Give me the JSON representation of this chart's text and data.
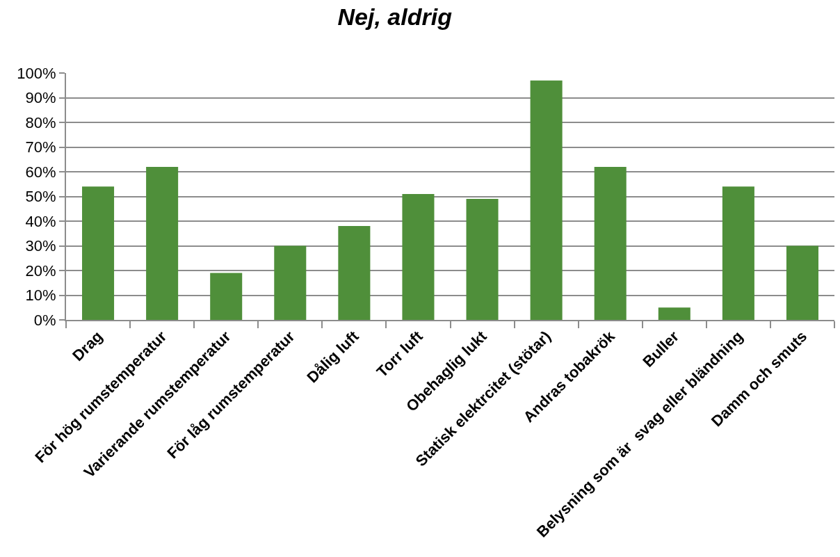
{
  "chart_data": {
    "type": "bar",
    "title": "Nej, aldrig",
    "categories": [
      "Drag",
      "För hög rumstemperatur",
      "Varierande rumstemperatur",
      "För låg rumstemperatur",
      "Dålig luft",
      "Torr luft",
      "Obehaglig lukt",
      "Statisk elektrcitet (stötar)",
      "Andras tobakrök",
      "Buller",
      "Belysning som är  svag eller bländning",
      "Damm och smuts"
    ],
    "values": [
      54,
      62,
      19,
      30,
      38,
      51,
      49,
      97,
      62,
      5,
      54,
      30
    ],
    "color": "#4f8f3a",
    "ylim": [
      0,
      100
    ],
    "yticks": [
      {
        "value": 0,
        "label": "0%"
      },
      {
        "value": 10,
        "label": "10%"
      },
      {
        "value": 20,
        "label": "20%"
      },
      {
        "value": 30,
        "label": "30%"
      },
      {
        "value": 40,
        "label": "40%"
      },
      {
        "value": 50,
        "label": "50%"
      },
      {
        "value": 60,
        "label": "60%"
      },
      {
        "value": 70,
        "label": "70%"
      },
      {
        "value": 80,
        "label": "80%"
      },
      {
        "value": 90,
        "label": "90%"
      },
      {
        "value": 100,
        "label": "100%"
      }
    ],
    "grid": "y"
  }
}
